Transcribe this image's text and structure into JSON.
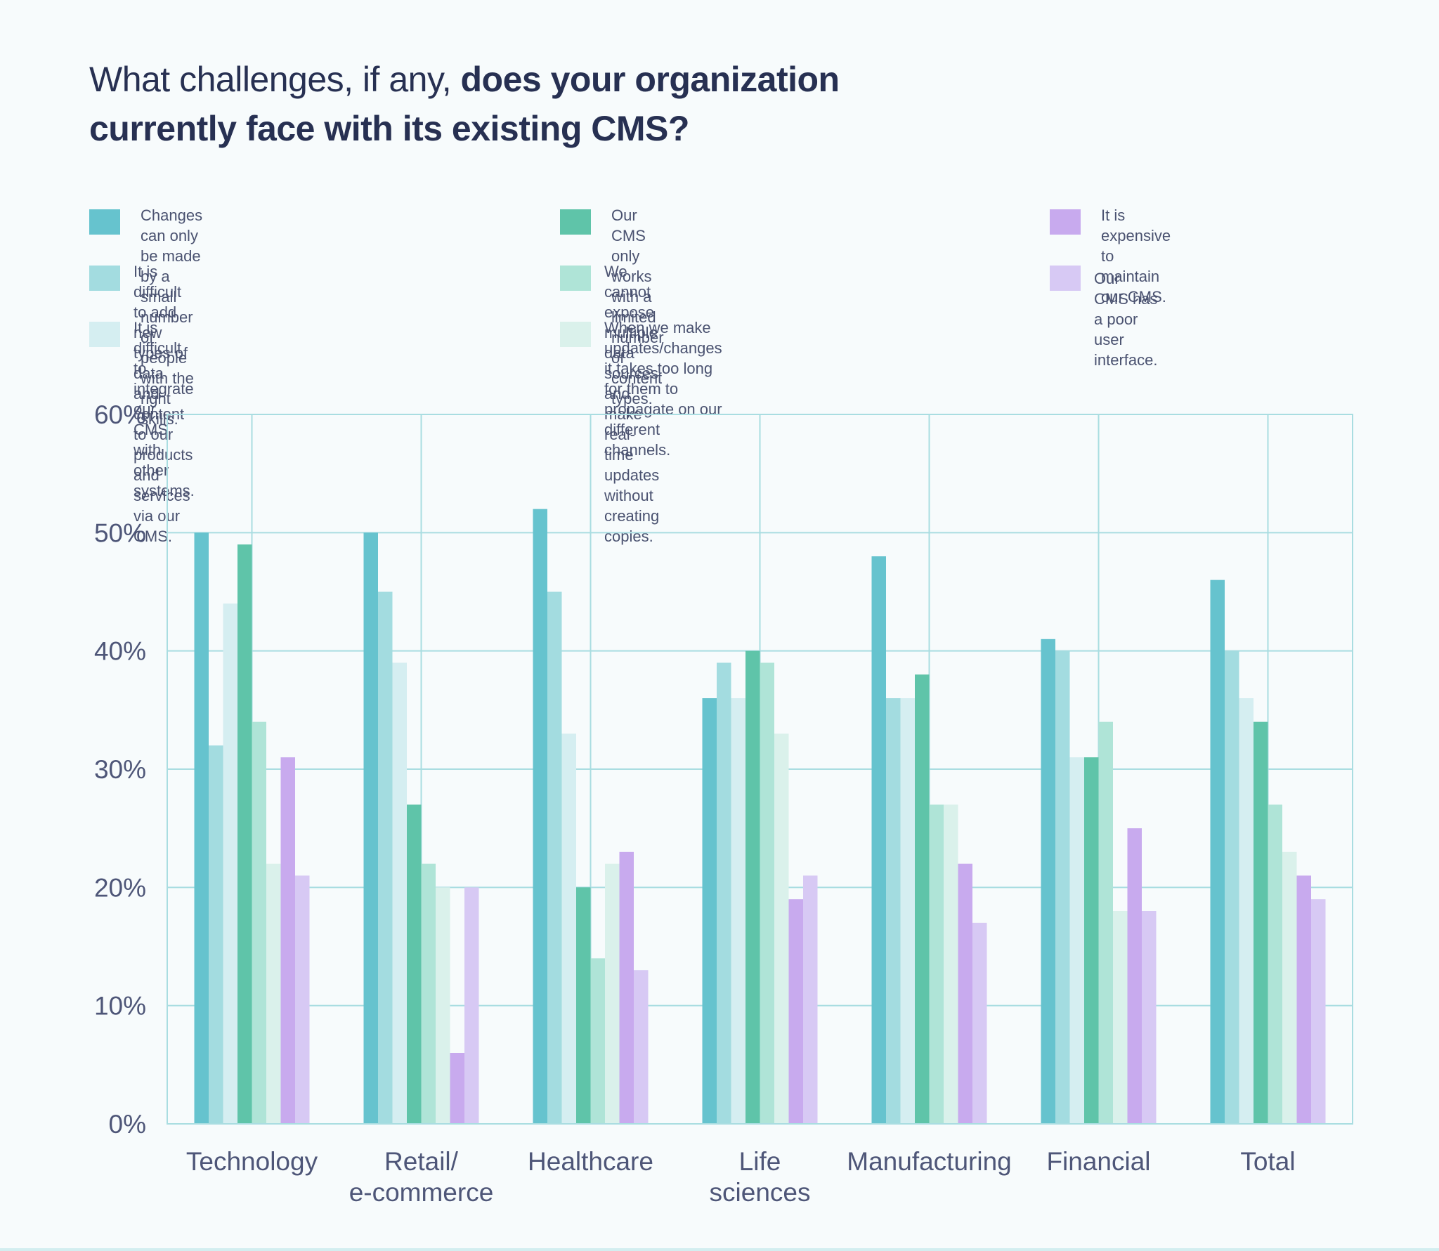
{
  "title": {
    "regular": "What challenges, if any, ",
    "bold1": "does your organization",
    "bold2": "currently face with its existing CMS?"
  },
  "legend": [
    {
      "line1": "Changes can only be made by a small",
      "line2": "number of people with the right skills.",
      "color": "#66c3ce"
    },
    {
      "line1": "It is difficult to add new types of data and content",
      "line2": "to our products and services via our CMS.",
      "color": "#a3dce0"
    },
    {
      "line1": "It is difficult to integrate our",
      "line2": "CMS with other systems.",
      "color": "#d5eef1"
    },
    {
      "line1": "Our CMS only works with a",
      "line2": "limited number of content types.",
      "color": "#5fc4a9"
    },
    {
      "line1": "We cannot expose multiple data sources and",
      "line2": "make real-time updates without creating copies.",
      "color": "#afe4d7"
    },
    {
      "line1": "When we make updates/changes it takes too long",
      "line2": "for them to propagate on our different channels.",
      "color": "#daf1eb"
    },
    {
      "line1": "It is expensive to",
      "line2": "maintain our CMS.",
      "color": "#c8aaee"
    },
    {
      "line1": "Our CMS has a poor user interface.",
      "line2": "",
      "color": "#d7c9f4"
    }
  ],
  "chart_data": {
    "type": "bar",
    "title": "What challenges, if any, does your organization currently face with its existing CMS?",
    "categories": [
      [
        "Technology"
      ],
      [
        "Retail/",
        "e-commerce"
      ],
      [
        "Healthcare"
      ],
      [
        "Life",
        "sciences"
      ],
      [
        "Manufacturing"
      ],
      [
        "Financial"
      ],
      [
        "Total"
      ]
    ],
    "ylim": [
      0,
      60
    ],
    "yticks": [
      0,
      10,
      20,
      30,
      40,
      50,
      60
    ],
    "ytick_labels": [
      "0%",
      "10%",
      "20%",
      "30%",
      "40%",
      "50%",
      "60%"
    ],
    "grid": true,
    "series": [
      {
        "name": "Changes can only be made by a small number of people with the right skills.",
        "color": "#66c3ce",
        "values": [
          50,
          50,
          52,
          36,
          48,
          41,
          46
        ]
      },
      {
        "name": "It is difficult to add new types of data and content to our products and services via our CMS.",
        "color": "#a3dce0",
        "values": [
          32,
          45,
          45,
          39,
          36,
          40,
          40
        ]
      },
      {
        "name": "It is difficult to integrate our CMS with other systems.",
        "color": "#d5eef1",
        "values": [
          44,
          39,
          33,
          36,
          36,
          31,
          36
        ]
      },
      {
        "name": "Our CMS only works with a limited number of content types.",
        "color": "#5fc4a9",
        "values": [
          49,
          27,
          20,
          40,
          38,
          31,
          34
        ]
      },
      {
        "name": "We cannot expose multiple data sources and make real-time updates without creating copies.",
        "color": "#afe4d7",
        "values": [
          34,
          22,
          14,
          39,
          27,
          34,
          27
        ]
      },
      {
        "name": "When we make updates/changes it takes too long for them to propagate on our different channels.",
        "color": "#daf1eb",
        "values": [
          22,
          20,
          22,
          33,
          27,
          18,
          23
        ]
      },
      {
        "name": "It is expensive to maintain our CMS.",
        "color": "#c8aaee",
        "values": [
          31,
          6,
          23,
          19,
          22,
          25,
          21
        ]
      },
      {
        "name": "Our CMS has a poor user interface.",
        "color": "#d7c9f4",
        "values": [
          21,
          20,
          13,
          21,
          17,
          18,
          19
        ]
      }
    ]
  }
}
